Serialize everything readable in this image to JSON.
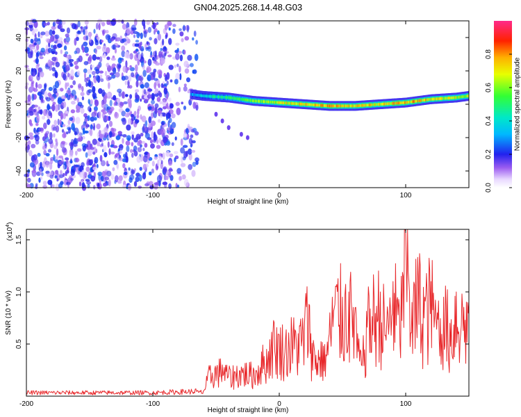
{
  "title": "GN04.2025.268.14.48.G03",
  "colors": {
    "snr_line": "#e8282b",
    "frame": "#000000",
    "background": "#ffffff"
  },
  "chart_data": [
    {
      "type": "heatmap",
      "name": "spectrogram",
      "xlabel": "Height of straight line (km)",
      "ylabel": "Frequency (Hz)",
      "xlim": [
        -200,
        150
      ],
      "ylim": [
        -50,
        50
      ],
      "x_ticks": [
        {
          "value": -200,
          "label": "-200"
        },
        {
          "value": -100,
          "label": "-100"
        },
        {
          "value": 0,
          "label": "0"
        },
        {
          "value": 100,
          "label": "100"
        }
      ],
      "y_ticks": [
        {
          "value": -40,
          "label": "-40"
        },
        {
          "value": -20,
          "label": "-20"
        },
        {
          "value": 0,
          "label": "0"
        },
        {
          "value": 20,
          "label": "20"
        },
        {
          "value": 40,
          "label": "40"
        }
      ],
      "noise_region": {
        "x_from": -200,
        "x_to": -65,
        "y_from": -50,
        "y_to": 50,
        "amplitude": [
          0.05,
          0.25
        ]
      },
      "signal_track": [
        {
          "x": -70,
          "y": 6,
          "amplitude": 0.3
        },
        {
          "x": -60,
          "y": 5,
          "amplitude": 0.4
        },
        {
          "x": -40,
          "y": 4,
          "amplitude": 0.5
        },
        {
          "x": -20,
          "y": 2,
          "amplitude": 0.6
        },
        {
          "x": 0,
          "y": 1,
          "amplitude": 0.7
        },
        {
          "x": 20,
          "y": 0,
          "amplitude": 0.75
        },
        {
          "x": 40,
          "y": -1,
          "amplitude": 0.8
        },
        {
          "x": 60,
          "y": -1,
          "amplitude": 0.75
        },
        {
          "x": 80,
          "y": 0,
          "amplitude": 0.75
        },
        {
          "x": 100,
          "y": 1,
          "amplitude": 0.8
        },
        {
          "x": 120,
          "y": 3,
          "amplitude": 0.75
        },
        {
          "x": 140,
          "y": 4,
          "amplitude": 0.7
        },
        {
          "x": 150,
          "y": 5,
          "amplitude": 0.65
        }
      ],
      "secondary_branch": [
        {
          "x": -50,
          "y": -6
        },
        {
          "x": -45,
          "y": -10
        },
        {
          "x": -40,
          "y": -14
        },
        {
          "x": -30,
          "y": -18
        },
        {
          "x": -25,
          "y": -20
        }
      ],
      "colorbar": {
        "label": "Normalized spectral amplitude",
        "range": [
          0,
          1
        ],
        "ticks": [
          {
            "value": 0.0,
            "label": "0.0"
          },
          {
            "value": 0.2,
            "label": "0.2"
          },
          {
            "value": 0.4,
            "label": "0.4"
          },
          {
            "value": 0.6,
            "label": "0.6"
          },
          {
            "value": 0.8,
            "label": "0.8"
          }
        ]
      }
    },
    {
      "type": "line",
      "name": "snr",
      "xlabel": "Height of straight line (km)",
      "ylabel": "SNR (10 * v/v)",
      "scale_label_base": "(x10",
      "scale_label_exp": "4",
      "scale_label_end": ")",
      "xlim": [
        -200,
        150
      ],
      "ylim": [
        0,
        1.6
      ],
      "x_ticks": [
        {
          "value": -200,
          "label": "-200"
        },
        {
          "value": -100,
          "label": "-100"
        },
        {
          "value": 0,
          "label": "0"
        },
        {
          "value": 100,
          "label": "100"
        }
      ],
      "y_ticks": [
        {
          "value": 0.5,
          "label": "0.5"
        },
        {
          "value": 1.0,
          "label": "1.0"
        },
        {
          "value": 1.5,
          "label": "1.5"
        }
      ],
      "x": [
        -200,
        -150,
        -100,
        -70,
        -60,
        -55,
        -45,
        -40,
        -30,
        -20,
        -10,
        -5,
        5,
        10,
        15,
        20,
        22,
        25,
        28,
        35,
        38,
        40,
        45,
        50,
        55,
        60,
        62,
        65,
        70,
        75,
        80,
        85,
        90,
        95,
        98,
        100,
        102,
        105,
        110,
        115,
        120,
        125,
        130,
        135,
        140,
        145,
        150
      ],
      "y": [
        0.03,
        0.03,
        0.03,
        0.04,
        0.05,
        0.25,
        0.3,
        0.22,
        0.28,
        0.25,
        0.45,
        0.6,
        0.55,
        0.62,
        0.6,
        0.7,
        1.05,
        0.6,
        0.42,
        0.48,
        0.52,
        0.8,
        1.05,
        0.95,
        1.0,
        0.85,
        0.6,
        0.3,
        0.8,
        0.95,
        1.0,
        0.7,
        1.1,
        0.85,
        1.15,
        1.58,
        1.2,
        0.9,
        1.15,
        0.95,
        1.1,
        0.8,
        0.95,
        0.7,
        1.0,
        0.85,
        0.9
      ]
    }
  ]
}
